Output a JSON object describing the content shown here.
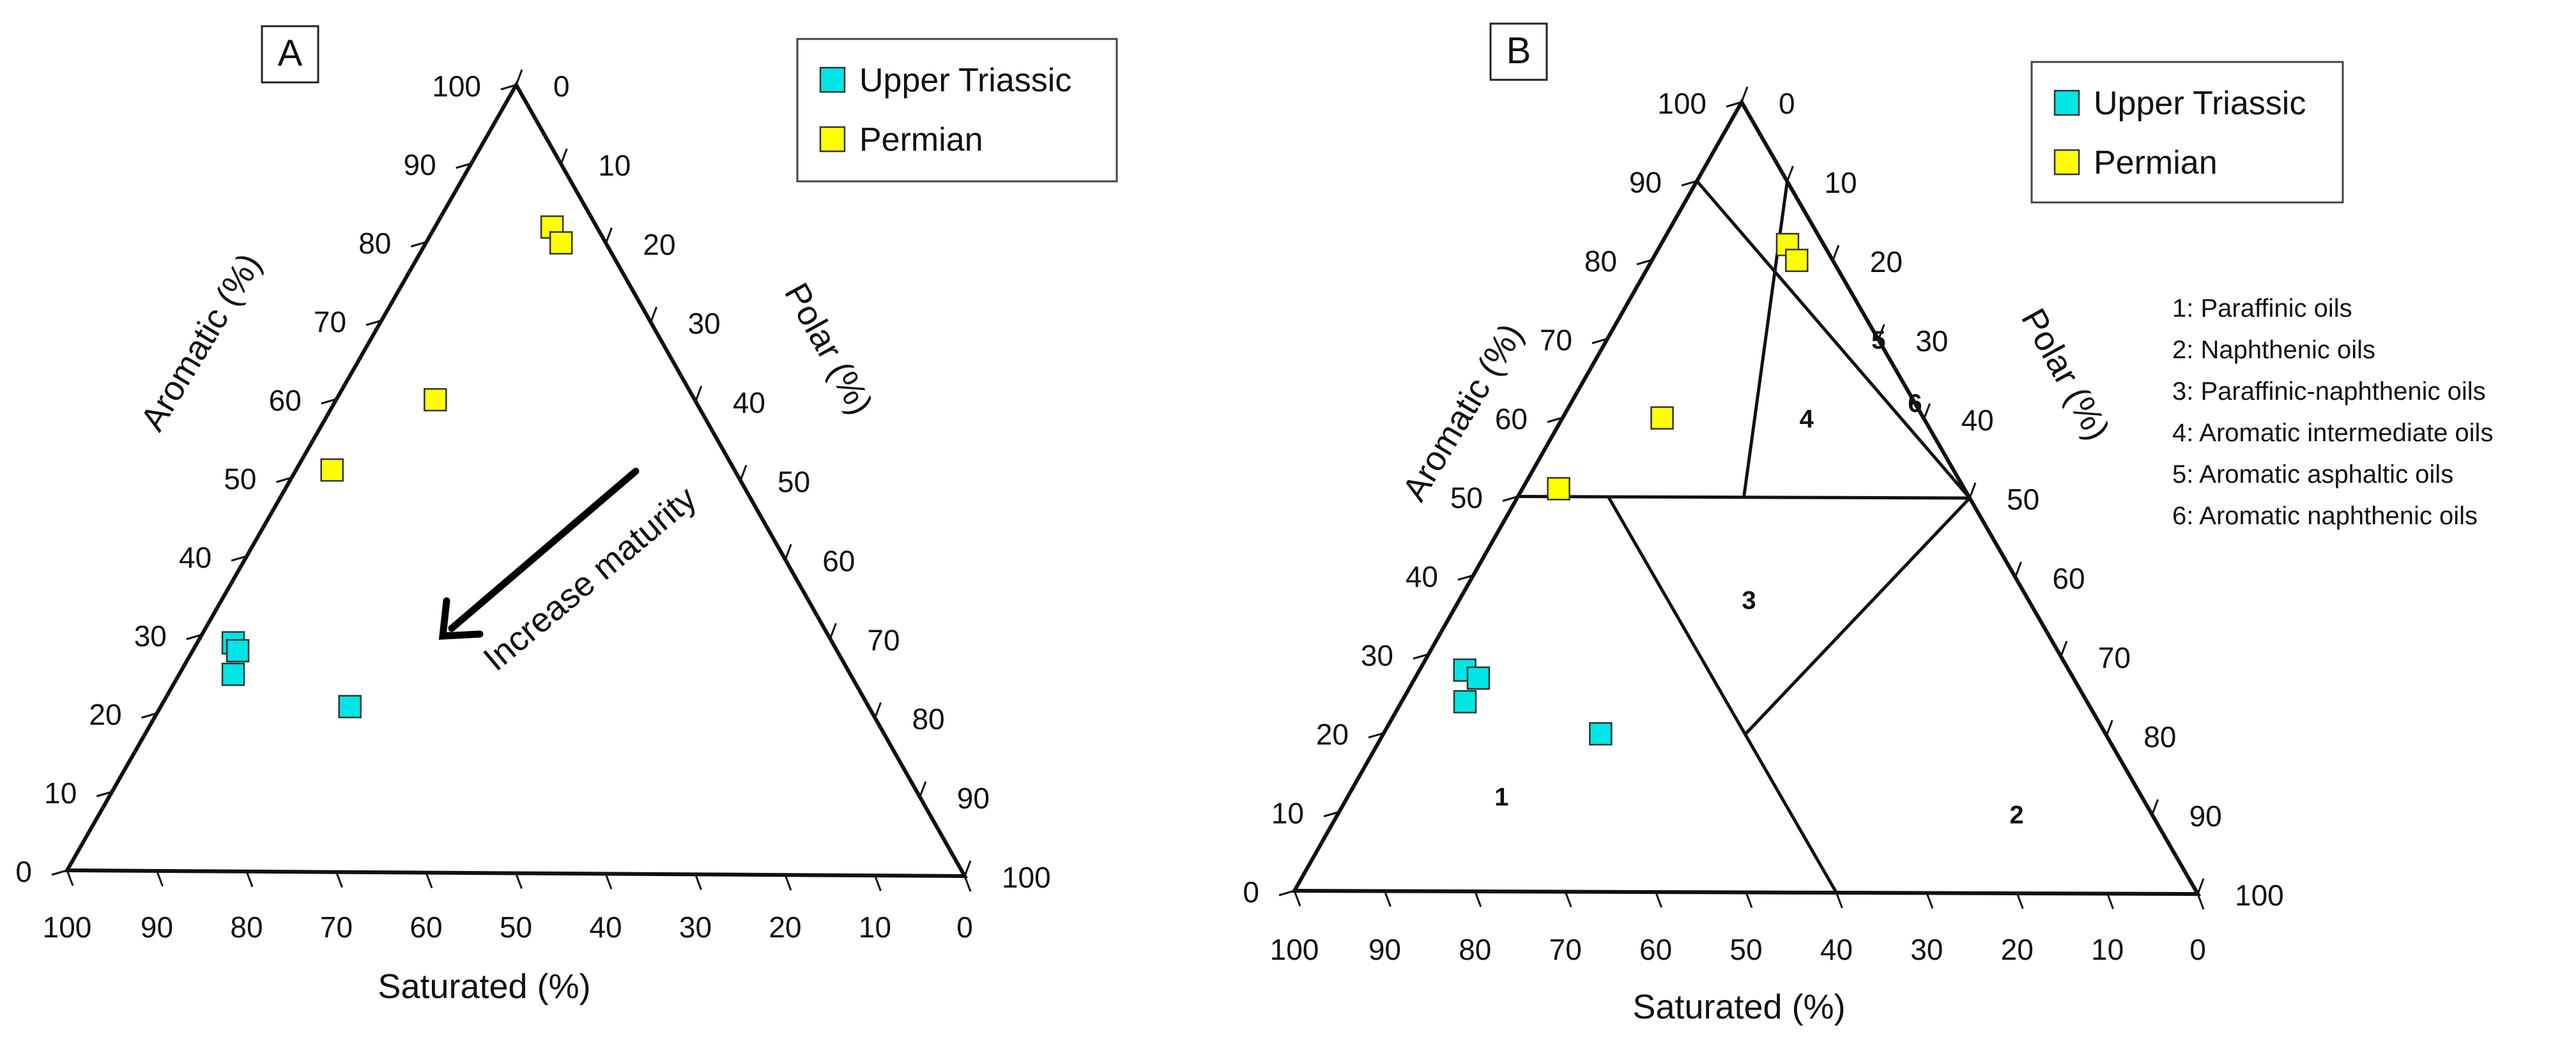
{
  "chart_data": [
    {
      "type": "scatter",
      "subtype": "ternary",
      "panel_label": "A",
      "axes": {
        "saturated": {
          "label": "Saturated (%)",
          "ticks": [
            "100",
            "90",
            "80",
            "70",
            "60",
            "50",
            "40",
            "30",
            "20",
            "10",
            "0"
          ]
        },
        "aromatic": {
          "label": "Aromatic (%)",
          "ticks": [
            "0",
            "10",
            "20",
            "30",
            "40",
            "50",
            "60",
            "70",
            "80",
            "90",
            "100"
          ]
        },
        "polar": {
          "label": "Polar (%)",
          "ticks": [
            "0",
            "10",
            "20",
            "30",
            "40",
            "50",
            "60",
            "70",
            "80",
            "90",
            "100"
          ]
        }
      },
      "series": [
        {
          "name": "Upper Triassic",
          "color": "#00e5e5",
          "points": [
            {
              "saturated": 67,
              "aromatic": 29,
              "polar": 4
            },
            {
              "saturated": 67,
              "aromatic": 28,
              "polar": 5
            },
            {
              "saturated": 69,
              "aromatic": 25,
              "polar": 6
            },
            {
              "saturated": 58,
              "aromatic": 21,
              "polar": 21
            }
          ]
        },
        {
          "name": "Permian",
          "color": "#ffff00",
          "points": [
            {
              "saturated": 5,
              "aromatic": 82,
              "polar": 13
            },
            {
              "saturated": 5,
              "aromatic": 80,
              "polar": 15
            },
            {
              "saturated": 29,
              "aromatic": 60,
              "polar": 11
            },
            {
              "saturated": 45,
              "aromatic": 51,
              "polar": 4
            }
          ]
        }
      ],
      "annotation": "Increase maturity",
      "legend": "top-right"
    },
    {
      "type": "scatter",
      "subtype": "ternary",
      "panel_label": "B",
      "axes": {
        "saturated": {
          "label": "Saturated (%)",
          "ticks": [
            "100",
            "90",
            "80",
            "70",
            "60",
            "50",
            "40",
            "30",
            "20",
            "10",
            "0"
          ]
        },
        "aromatic": {
          "label": "Aromatic (%)",
          "ticks": [
            "0",
            "10",
            "20",
            "30",
            "40",
            "50",
            "60",
            "70",
            "80",
            "90",
            "100"
          ]
        },
        "polar": {
          "label": "Polar (%)",
          "ticks": [
            "0",
            "10",
            "20",
            "30",
            "40",
            "50",
            "60",
            "70",
            "80",
            "90",
            "100"
          ]
        }
      },
      "series": [
        {
          "name": "Upper Triassic",
          "color": "#00e5e5",
          "points": [
            {
              "saturated": 67,
              "aromatic": 28,
              "polar": 5
            },
            {
              "saturated": 66,
              "aromatic": 27,
              "polar": 7
            },
            {
              "saturated": 69,
              "aromatic": 24,
              "polar": 7
            },
            {
              "saturated": 56,
              "aromatic": 20,
              "polar": 24
            }
          ]
        },
        {
          "name": "Permian",
          "color": "#ffff00",
          "points": [
            {
              "saturated": 4,
              "aromatic": 82,
              "polar": 14
            },
            {
              "saturated": 4,
              "aromatic": 80,
              "polar": 16
            },
            {
              "saturated": 29,
              "aromatic": 60,
              "polar": 11
            },
            {
              "saturated": 45,
              "aromatic": 51,
              "polar": 4
            }
          ]
        }
      ],
      "region_boundaries": [
        [
          {
            "s": 50,
            "a": 50,
            "p": 0
          },
          {
            "s": 0,
            "a": 50,
            "p": 50
          }
        ],
        [
          {
            "s": 0,
            "a": 90,
            "p": 10
          },
          {
            "s": 25,
            "a": 50,
            "p": 25
          }
        ],
        [
          {
            "s": 10,
            "a": 90,
            "p": 0
          },
          {
            "s": 0,
            "a": 50,
            "p": 50
          }
        ],
        [
          {
            "s": 0,
            "a": 75,
            "p": 25
          },
          {
            "s": 0,
            "a": 50,
            "p": 50
          }
        ],
        [
          {
            "s": 40,
            "a": 50,
            "p": 10
          },
          {
            "s": 40,
            "a": 20,
            "p": 40
          }
        ],
        [
          {
            "s": 40,
            "a": 20,
            "p": 40
          },
          {
            "s": 0,
            "a": 50,
            "p": 50
          }
        ],
        [
          {
            "s": 40,
            "a": 20,
            "p": 40
          },
          {
            "s": 40,
            "a": 0,
            "p": 60
          }
        ]
      ],
      "zones": [
        {
          "label": "1",
          "s": 71,
          "a": 12,
          "p": 17
        },
        {
          "label": "2",
          "s": 15,
          "a": 10,
          "p": 75
        },
        {
          "label": "3",
          "s": 31,
          "a": 37,
          "p": 32
        },
        {
          "label": "4",
          "s": 13,
          "a": 60,
          "p": 27
        },
        {
          "label": "5",
          "s": 0,
          "a": 70,
          "p": 30
        },
        {
          "label": "6",
          "s": 0,
          "a": 62,
          "p": 38
        }
      ],
      "region_key": [
        "1: Paraffinic oils",
        "2: Naphthenic oils",
        "3: Paraffinic-naphthenic oils",
        "4: Aromatic intermediate oils",
        "5: Aromatic asphaltic oils",
        "6: Aromatic naphthenic oils"
      ],
      "legend": "top-right"
    }
  ]
}
